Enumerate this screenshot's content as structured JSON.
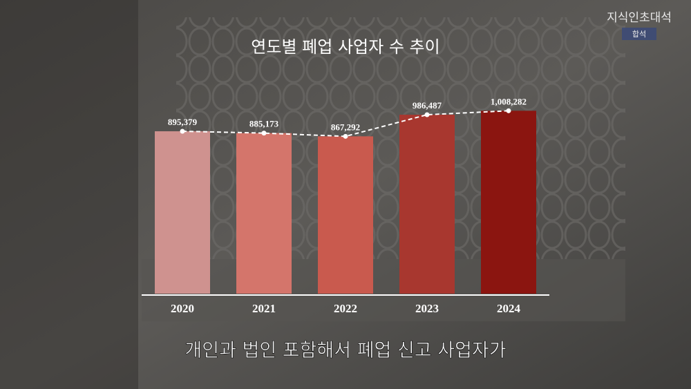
{
  "chart_data": {
    "type": "bar",
    "title": "연도별 폐업 사업자 수 추이",
    "categories": [
      "2020",
      "2021",
      "2022",
      "2023",
      "2024"
    ],
    "values": [
      895379,
      885173,
      867292,
      986487,
      1008282
    ],
    "value_labels": [
      "895,379",
      "885,173",
      "867,292",
      "986,487",
      "1,008,282"
    ],
    "colors": [
      "#cf928f",
      "#d4756b",
      "#c95a4e",
      "#a8372f",
      "#8b1510"
    ],
    "line_color": "#ffffff",
    "ylim": [
      0,
      1200000
    ]
  },
  "caption": "개인과 법인 포함해서 폐업 신고 사업자가",
  "watermark": {
    "title": "지식인초대석",
    "subtitle": "합석"
  }
}
